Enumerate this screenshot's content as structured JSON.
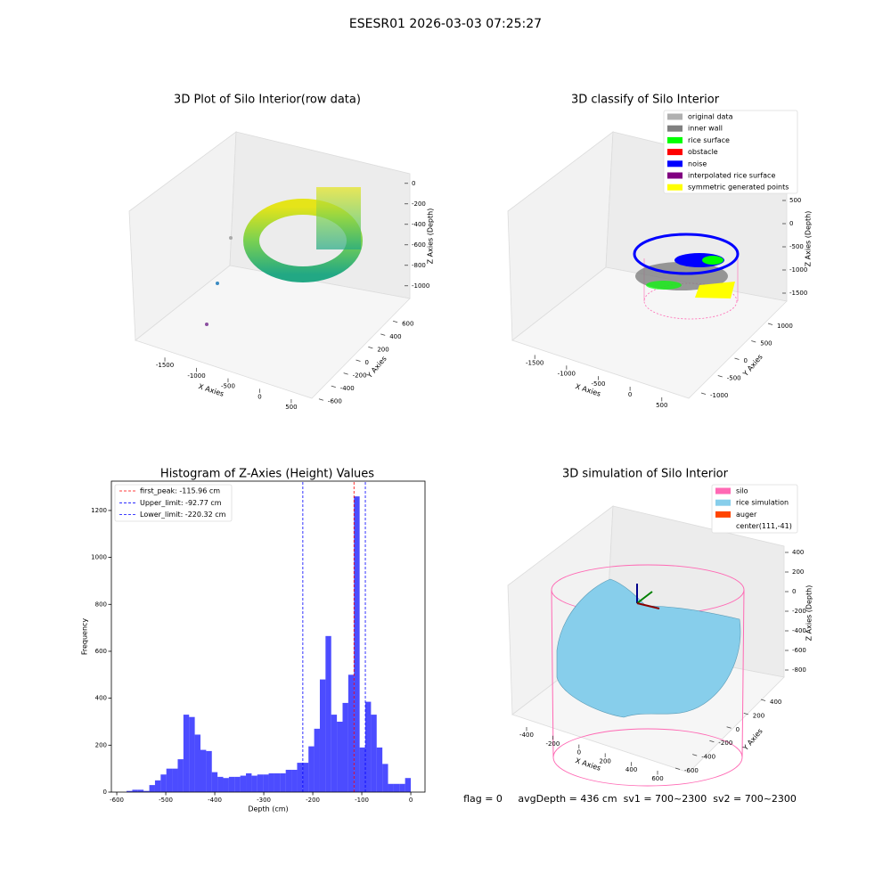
{
  "title": "ESESR01 2026-03-03 07:25:27",
  "chart_data": [
    {
      "type": "scatter3d",
      "title": "3D Plot of Silo Interior(row data)",
      "xlabel": "X Axies",
      "ylabel": "Y Axies",
      "zlabel": "Z Axies (Depth)",
      "xlim": [
        -1980,
        840
      ],
      "xticks": [
        -1500,
        -1000,
        -500,
        0,
        500
      ],
      "ylim": [
        -700,
        700
      ],
      "yticks": [
        -600,
        -400,
        -200,
        0,
        200,
        400,
        600
      ],
      "zlim": [
        -1150,
        50
      ],
      "zticks": [
        -1000,
        -800,
        -600,
        -400,
        -200,
        0
      ]
    },
    {
      "type": "scatter3d",
      "title": "3D classify of Silo Interior",
      "xlabel": "X Axies",
      "ylabel": "Y Axies",
      "zlabel": "Z Axies (Depth)",
      "xlim": [
        -1980,
        840
      ],
      "xticks": [
        -1500,
        -1000,
        -500,
        0,
        500
      ],
      "ylim": [
        -1200,
        1200
      ],
      "yticks": [
        -1000,
        -500,
        0,
        500,
        1000
      ],
      "zlim": [
        -1700,
        700
      ],
      "zticks": [
        -1500,
        -1000,
        -500,
        0,
        500
      ],
      "legend": [
        {
          "name": "original data",
          "color": "#b0b0b0"
        },
        {
          "name": "inner wall",
          "color": "#808080"
        },
        {
          "name": "rice surface",
          "color": "#00ff00"
        },
        {
          "name": "obstacle",
          "color": "#ff0000"
        },
        {
          "name": "noise",
          "color": "#0000ff"
        },
        {
          "name": "interpolated rice surface",
          "color": "#800080"
        },
        {
          "name": "symmetric generated points",
          "color": "#ffff00"
        }
      ]
    },
    {
      "type": "histogram",
      "title": "Histogram of Z-Axies (Height) Values",
      "xlabel": "Depth (cm)",
      "ylabel": "Frequency",
      "color": "#0000ff",
      "bins": [
        -580,
        -568.4,
        -556.8,
        -545.2,
        -533.6,
        -522,
        -510.4,
        -498.8,
        -487.2,
        -475.6,
        -464,
        -452.4,
        -440.8,
        -429.2,
        -417.6,
        -406,
        -394.4,
        -382.8,
        -371.2,
        -359.6,
        -348,
        -336.4,
        -324.8,
        -313.2,
        -301.6,
        -290,
        -278.4,
        -266.8,
        -255.2,
        -243.6,
        -232,
        -220.4,
        -208.8,
        -197.2,
        -185.6,
        -174,
        -162.4,
        -150.8,
        -139.2,
        -127.6,
        -116,
        -104.4,
        -92.8,
        -81.2,
        -69.6,
        -58,
        -46.4,
        -34.8,
        -23.2,
        -11.6,
        0
      ],
      "values": [
        5,
        10,
        10,
        5,
        30,
        50,
        75,
        100,
        100,
        140,
        330,
        320,
        245,
        180,
        175,
        85,
        65,
        60,
        65,
        65,
        70,
        80,
        70,
        75,
        75,
        80,
        80,
        80,
        95,
        95,
        125,
        125,
        195,
        270,
        480,
        665,
        330,
        300,
        380,
        500,
        1260,
        190,
        385,
        330,
        190,
        120,
        35,
        35,
        35,
        60
      ],
      "xlim": [
        -611,
        29
      ],
      "xticks": [
        -600,
        -500,
        -400,
        -300,
        -200,
        -100,
        0
      ],
      "ylim": [
        0,
        1325
      ],
      "yticks": [
        0,
        200,
        400,
        600,
        800,
        1000,
        1200
      ],
      "vlines": [
        {
          "name": "first_peak: -115.96 cm",
          "value": -115.96,
          "color": "#ff0000"
        },
        {
          "name": "Upper_limit: -92.77 cm",
          "value": -92.77,
          "color": "#0000ff"
        },
        {
          "name": "Lower_limit: -220.32 cm",
          "value": -220.32,
          "color": "#0000ff"
        }
      ],
      "legend_loc": "upper left"
    },
    {
      "type": "surface3d",
      "title": "3D simulation of Silo Interior",
      "xlabel": "X Axies",
      "ylabel": "Y Axies",
      "zlabel": "Z Axies (Depth)",
      "xlim": [
        -500,
        700
      ],
      "xticks": [
        -400,
        -200,
        0,
        200,
        400,
        600
      ],
      "ylim": [
        -700,
        500
      ],
      "yticks": [
        -600,
        -400,
        -200,
        0,
        200,
        400
      ],
      "zlim": [
        -900,
        500
      ],
      "zticks": [
        -800,
        -600,
        -400,
        -200,
        0,
        200,
        400
      ],
      "legend": [
        {
          "name": "silo",
          "color": "#ff69b4"
        },
        {
          "name": "rice simulation",
          "color": "#87ceeb"
        },
        {
          "name": "auger",
          "color": "#ff4500"
        },
        {
          "name": "center(111,-41)"
        }
      ],
      "footer": "flag = 0     avgDepth = 436 cm  sv1 = 700~2300  sv2 = 700~2300"
    }
  ]
}
